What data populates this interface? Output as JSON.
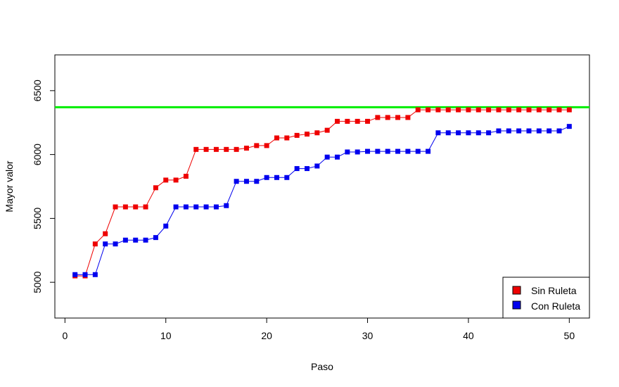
{
  "chart_data": {
    "type": "line",
    "xlabel": "Paso",
    "ylabel": "Mayor valor",
    "xlim": [
      -1,
      52
    ],
    "ylim": [
      4720,
      6780
    ],
    "x_ticks": [
      0,
      10,
      20,
      30,
      40,
      50
    ],
    "y_ticks": [
      5000,
      5500,
      6000,
      6500
    ],
    "reference_line": {
      "y": 6370,
      "color": "#00ee00"
    },
    "legend_position": "bottom-right",
    "x": [
      1,
      2,
      3,
      4,
      5,
      6,
      7,
      8,
      9,
      10,
      11,
      12,
      13,
      14,
      15,
      16,
      17,
      18,
      19,
      20,
      21,
      22,
      23,
      24,
      25,
      26,
      27,
      28,
      29,
      30,
      31,
      32,
      33,
      34,
      35,
      36,
      37,
      38,
      39,
      40,
      41,
      42,
      43,
      44,
      45,
      46,
      47,
      48,
      49,
      50
    ],
    "series": [
      {
        "name": "Sin Ruleta",
        "color": "#ee0000",
        "values": [
          5050,
          5050,
          5300,
          5380,
          5590,
          5590,
          5590,
          5590,
          5740,
          5800,
          5800,
          5830,
          6040,
          6040,
          6040,
          6040,
          6040,
          6050,
          6070,
          6070,
          6130,
          6130,
          6150,
          6160,
          6170,
          6190,
          6260,
          6260,
          6260,
          6260,
          6290,
          6290,
          6290,
          6290,
          6350,
          6350,
          6350,
          6350,
          6350,
          6350,
          6350,
          6350,
          6350,
          6350,
          6350,
          6350,
          6350,
          6350,
          6350,
          6350
        ]
      },
      {
        "name": "Con Ruleta",
        "color": "#0000ee",
        "values": [
          5060,
          5060,
          5060,
          5300,
          5300,
          5330,
          5330,
          5330,
          5350,
          5440,
          5590,
          5590,
          5590,
          5590,
          5590,
          5600,
          5790,
          5790,
          5790,
          5820,
          5820,
          5820,
          5890,
          5890,
          5910,
          5980,
          5980,
          6020,
          6020,
          6025,
          6025,
          6025,
          6025,
          6025,
          6025,
          6025,
          6170,
          6170,
          6170,
          6170,
          6170,
          6170,
          6185,
          6185,
          6185,
          6185,
          6185,
          6185,
          6185,
          6220
        ]
      }
    ]
  }
}
